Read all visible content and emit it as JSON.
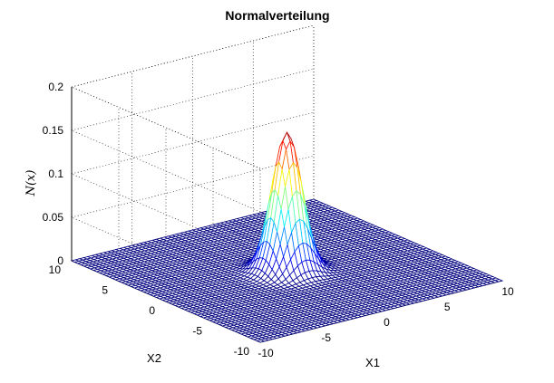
{
  "chart_data": {
    "type": "surface",
    "title": "Normalverteilung",
    "xlabel": "X1",
    "ylabel": "X2",
    "zlabel": "N(x)",
    "xlim": [
      -10,
      10
    ],
    "ylim": [
      -10,
      10
    ],
    "zlim": [
      0,
      0.2
    ],
    "x_ticks": [
      -10,
      -5,
      0,
      5,
      10
    ],
    "y_ticks": [
      -10,
      -5,
      0,
      5,
      10
    ],
    "z_ticks": [
      0,
      0.05,
      0.1,
      0.15,
      0.2
    ],
    "x_tick_labels": [
      "-10",
      "-5",
      "0",
      "5",
      "10"
    ],
    "y_tick_labels": [
      "-10",
      "-5",
      "0",
      "5",
      "10"
    ],
    "z_tick_labels": [
      "0",
      "0.05",
      "0.1",
      "0.15",
      "0.2"
    ],
    "surface": {
      "function": "bivariate normal density",
      "mean": [
        0,
        0
      ],
      "sigma": [
        1,
        1
      ],
      "peak_value": 0.159,
      "grid_points_per_axis": 61
    },
    "grid": true,
    "colormap": "jet",
    "colors": {
      "background": "#ffffff",
      "axis": "#000000"
    }
  }
}
